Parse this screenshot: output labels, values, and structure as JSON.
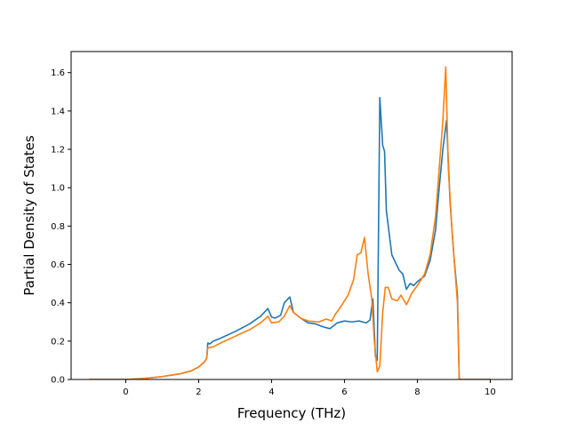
{
  "chart_data": {
    "type": "line",
    "title": "",
    "xlabel": "Frequency (THz)",
    "ylabel": "Partial Density of States",
    "xlim": [
      -1.5,
      10.6
    ],
    "ylim": [
      0.0,
      1.71
    ],
    "xticks": [
      0,
      2,
      4,
      6,
      8,
      10
    ],
    "yticks": [
      0.0,
      0.2,
      0.4,
      0.6,
      0.8,
      1.0,
      1.2,
      1.4,
      1.6
    ],
    "xtick_labels": [
      "0",
      "2",
      "4",
      "6",
      "8",
      "10"
    ],
    "ytick_labels": [
      "0.0",
      "0.2",
      "0.4",
      "0.6",
      "0.8",
      "1.0",
      "1.2",
      "1.4",
      "1.6"
    ],
    "grid": false,
    "legend": "none",
    "colors": [
      "#1f77b4",
      "#ff7f0e"
    ],
    "series": [
      {
        "points": [
          [
            -1.0,
            0.0
          ],
          [
            0.0,
            0.0
          ],
          [
            0.5,
            0.005
          ],
          [
            1.0,
            0.015
          ],
          [
            1.5,
            0.03
          ],
          [
            1.8,
            0.045
          ],
          [
            2.0,
            0.065
          ],
          [
            2.15,
            0.09
          ],
          [
            2.22,
            0.11
          ],
          [
            2.25,
            0.19
          ],
          [
            2.3,
            0.185
          ],
          [
            2.4,
            0.2
          ],
          [
            2.6,
            0.215
          ],
          [
            3.0,
            0.25
          ],
          [
            3.4,
            0.29
          ],
          [
            3.7,
            0.33
          ],
          [
            3.9,
            0.37
          ],
          [
            4.0,
            0.325
          ],
          [
            4.1,
            0.32
          ],
          [
            4.25,
            0.335
          ],
          [
            4.35,
            0.4
          ],
          [
            4.5,
            0.43
          ],
          [
            4.6,
            0.35
          ],
          [
            4.8,
            0.32
          ],
          [
            5.0,
            0.295
          ],
          [
            5.2,
            0.29
          ],
          [
            5.4,
            0.275
          ],
          [
            5.6,
            0.265
          ],
          [
            5.7,
            0.28
          ],
          [
            5.8,
            0.295
          ],
          [
            6.0,
            0.305
          ],
          [
            6.2,
            0.3
          ],
          [
            6.4,
            0.305
          ],
          [
            6.6,
            0.295
          ],
          [
            6.7,
            0.31
          ],
          [
            6.78,
            0.42
          ],
          [
            6.85,
            0.12
          ],
          [
            6.9,
            0.1
          ],
          [
            6.97,
            1.47
          ],
          [
            7.05,
            1.22
          ],
          [
            7.1,
            1.19
          ],
          [
            7.15,
            0.88
          ],
          [
            7.3,
            0.65
          ],
          [
            7.5,
            0.57
          ],
          [
            7.6,
            0.55
          ],
          [
            7.7,
            0.47
          ],
          [
            7.8,
            0.5
          ],
          [
            7.9,
            0.49
          ],
          [
            8.0,
            0.51
          ],
          [
            8.2,
            0.54
          ],
          [
            8.35,
            0.62
          ],
          [
            8.5,
            0.78
          ],
          [
            8.6,
            1.0
          ],
          [
            8.7,
            1.2
          ],
          [
            8.8,
            1.35
          ],
          [
            8.9,
            0.92
          ],
          [
            9.0,
            0.65
          ],
          [
            9.1,
            0.44
          ],
          [
            9.15,
            0.0
          ],
          [
            10.0,
            0.0
          ]
        ]
      },
      {
        "points": [
          [
            -1.0,
            0.0
          ],
          [
            0.0,
            0.0
          ],
          [
            0.5,
            0.005
          ],
          [
            1.0,
            0.015
          ],
          [
            1.5,
            0.03
          ],
          [
            1.8,
            0.045
          ],
          [
            2.0,
            0.065
          ],
          [
            2.15,
            0.09
          ],
          [
            2.22,
            0.11
          ],
          [
            2.25,
            0.165
          ],
          [
            2.4,
            0.17
          ],
          [
            2.6,
            0.19
          ],
          [
            3.0,
            0.225
          ],
          [
            3.4,
            0.26
          ],
          [
            3.7,
            0.295
          ],
          [
            3.9,
            0.33
          ],
          [
            4.0,
            0.295
          ],
          [
            4.2,
            0.3
          ],
          [
            4.35,
            0.33
          ],
          [
            4.5,
            0.385
          ],
          [
            4.6,
            0.35
          ],
          [
            4.8,
            0.32
          ],
          [
            5.0,
            0.305
          ],
          [
            5.3,
            0.3
          ],
          [
            5.5,
            0.315
          ],
          [
            5.65,
            0.305
          ],
          [
            5.75,
            0.34
          ],
          [
            5.9,
            0.38
          ],
          [
            6.1,
            0.44
          ],
          [
            6.25,
            0.52
          ],
          [
            6.35,
            0.65
          ],
          [
            6.45,
            0.66
          ],
          [
            6.55,
            0.74
          ],
          [
            6.65,
            0.55
          ],
          [
            6.75,
            0.42
          ],
          [
            6.82,
            0.2
          ],
          [
            6.9,
            0.04
          ],
          [
            6.97,
            0.07
          ],
          [
            7.05,
            0.35
          ],
          [
            7.12,
            0.48
          ],
          [
            7.2,
            0.48
          ],
          [
            7.3,
            0.42
          ],
          [
            7.45,
            0.41
          ],
          [
            7.55,
            0.44
          ],
          [
            7.7,
            0.39
          ],
          [
            7.85,
            0.45
          ],
          [
            8.0,
            0.49
          ],
          [
            8.2,
            0.55
          ],
          [
            8.35,
            0.65
          ],
          [
            8.5,
            0.85
          ],
          [
            8.6,
            1.1
          ],
          [
            8.7,
            1.35
          ],
          [
            8.78,
            1.63
          ],
          [
            8.85,
            1.1
          ],
          [
            8.95,
            0.78
          ],
          [
            9.1,
            0.4
          ],
          [
            9.15,
            0.0
          ],
          [
            10.0,
            0.0
          ]
        ]
      }
    ]
  }
}
